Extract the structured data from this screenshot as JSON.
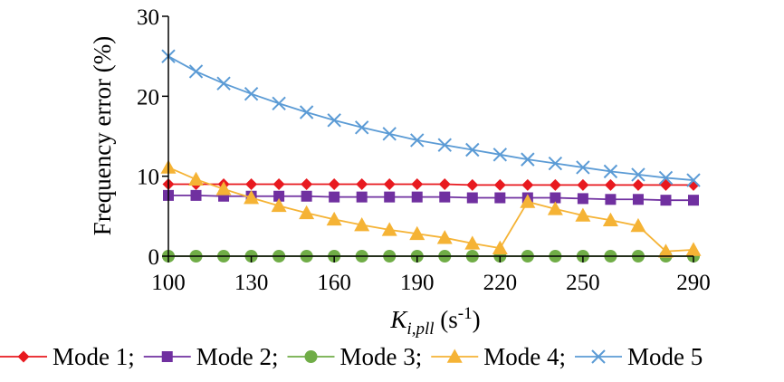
{
  "chart_data": {
    "type": "line",
    "title": "",
    "xlabel": "K_{i,pll} (s-1)",
    "xlabel_parts": {
      "main": "K",
      "subscript": "i,pll",
      "unit_open": " (s",
      "superscript": "-1",
      "unit_close": ")"
    },
    "ylabel": "Frequency error (%)",
    "xlim": [
      100,
      290
    ],
    "ylim": [
      0,
      30
    ],
    "x_ticks": [
      "100",
      "130",
      "160",
      "190",
      "220",
      "250",
      "290"
    ],
    "y_ticks": [
      "0",
      "10",
      "20",
      "30"
    ],
    "legend_position": "bottom",
    "x": [
      100,
      110,
      120,
      130,
      140,
      150,
      160,
      170,
      180,
      190,
      200,
      210,
      220,
      230,
      240,
      250,
      260,
      270,
      280,
      290
    ],
    "series": [
      {
        "name": "Mode 1;",
        "color": "#e8191f",
        "marker": "diamond",
        "values": [
          9.0,
          9.0,
          9.0,
          9.0,
          9.0,
          9.0,
          9.0,
          9.0,
          9.0,
          9.0,
          9.0,
          8.9,
          8.9,
          8.9,
          8.9,
          8.9,
          8.9,
          8.9,
          8.9,
          8.9
        ]
      },
      {
        "name": "Mode 2;",
        "color": "#7030a0",
        "marker": "square",
        "values": [
          7.6,
          7.6,
          7.5,
          7.5,
          7.5,
          7.5,
          7.4,
          7.4,
          7.4,
          7.4,
          7.4,
          7.3,
          7.3,
          7.3,
          7.3,
          7.2,
          7.1,
          7.1,
          7.0,
          7.0
        ]
      },
      {
        "name": "Mode 3;",
        "color": "#70ad47",
        "marker": "circle",
        "values": [
          0,
          0,
          0,
          0,
          0,
          0,
          0,
          0,
          0,
          0,
          0,
          0,
          0,
          0,
          0,
          0,
          0,
          0,
          0,
          0
        ]
      },
      {
        "name": "Mode 4;",
        "color": "#f5b335",
        "marker": "triangle",
        "values": [
          11.1,
          9.6,
          8.4,
          7.3,
          6.3,
          5.4,
          4.6,
          3.9,
          3.3,
          2.8,
          2.3,
          1.6,
          1.0,
          6.8,
          5.9,
          5.1,
          4.5,
          3.8,
          0.6,
          0.8
        ]
      },
      {
        "name": "Mode 5",
        "color": "#5b9bd5",
        "marker": "x",
        "values": [
          25.0,
          23.1,
          21.6,
          20.3,
          19.1,
          18.0,
          17.0,
          16.1,
          15.3,
          14.5,
          13.9,
          13.3,
          12.7,
          12.1,
          11.6,
          11.1,
          10.6,
          10.2,
          9.8,
          9.5
        ]
      }
    ]
  }
}
